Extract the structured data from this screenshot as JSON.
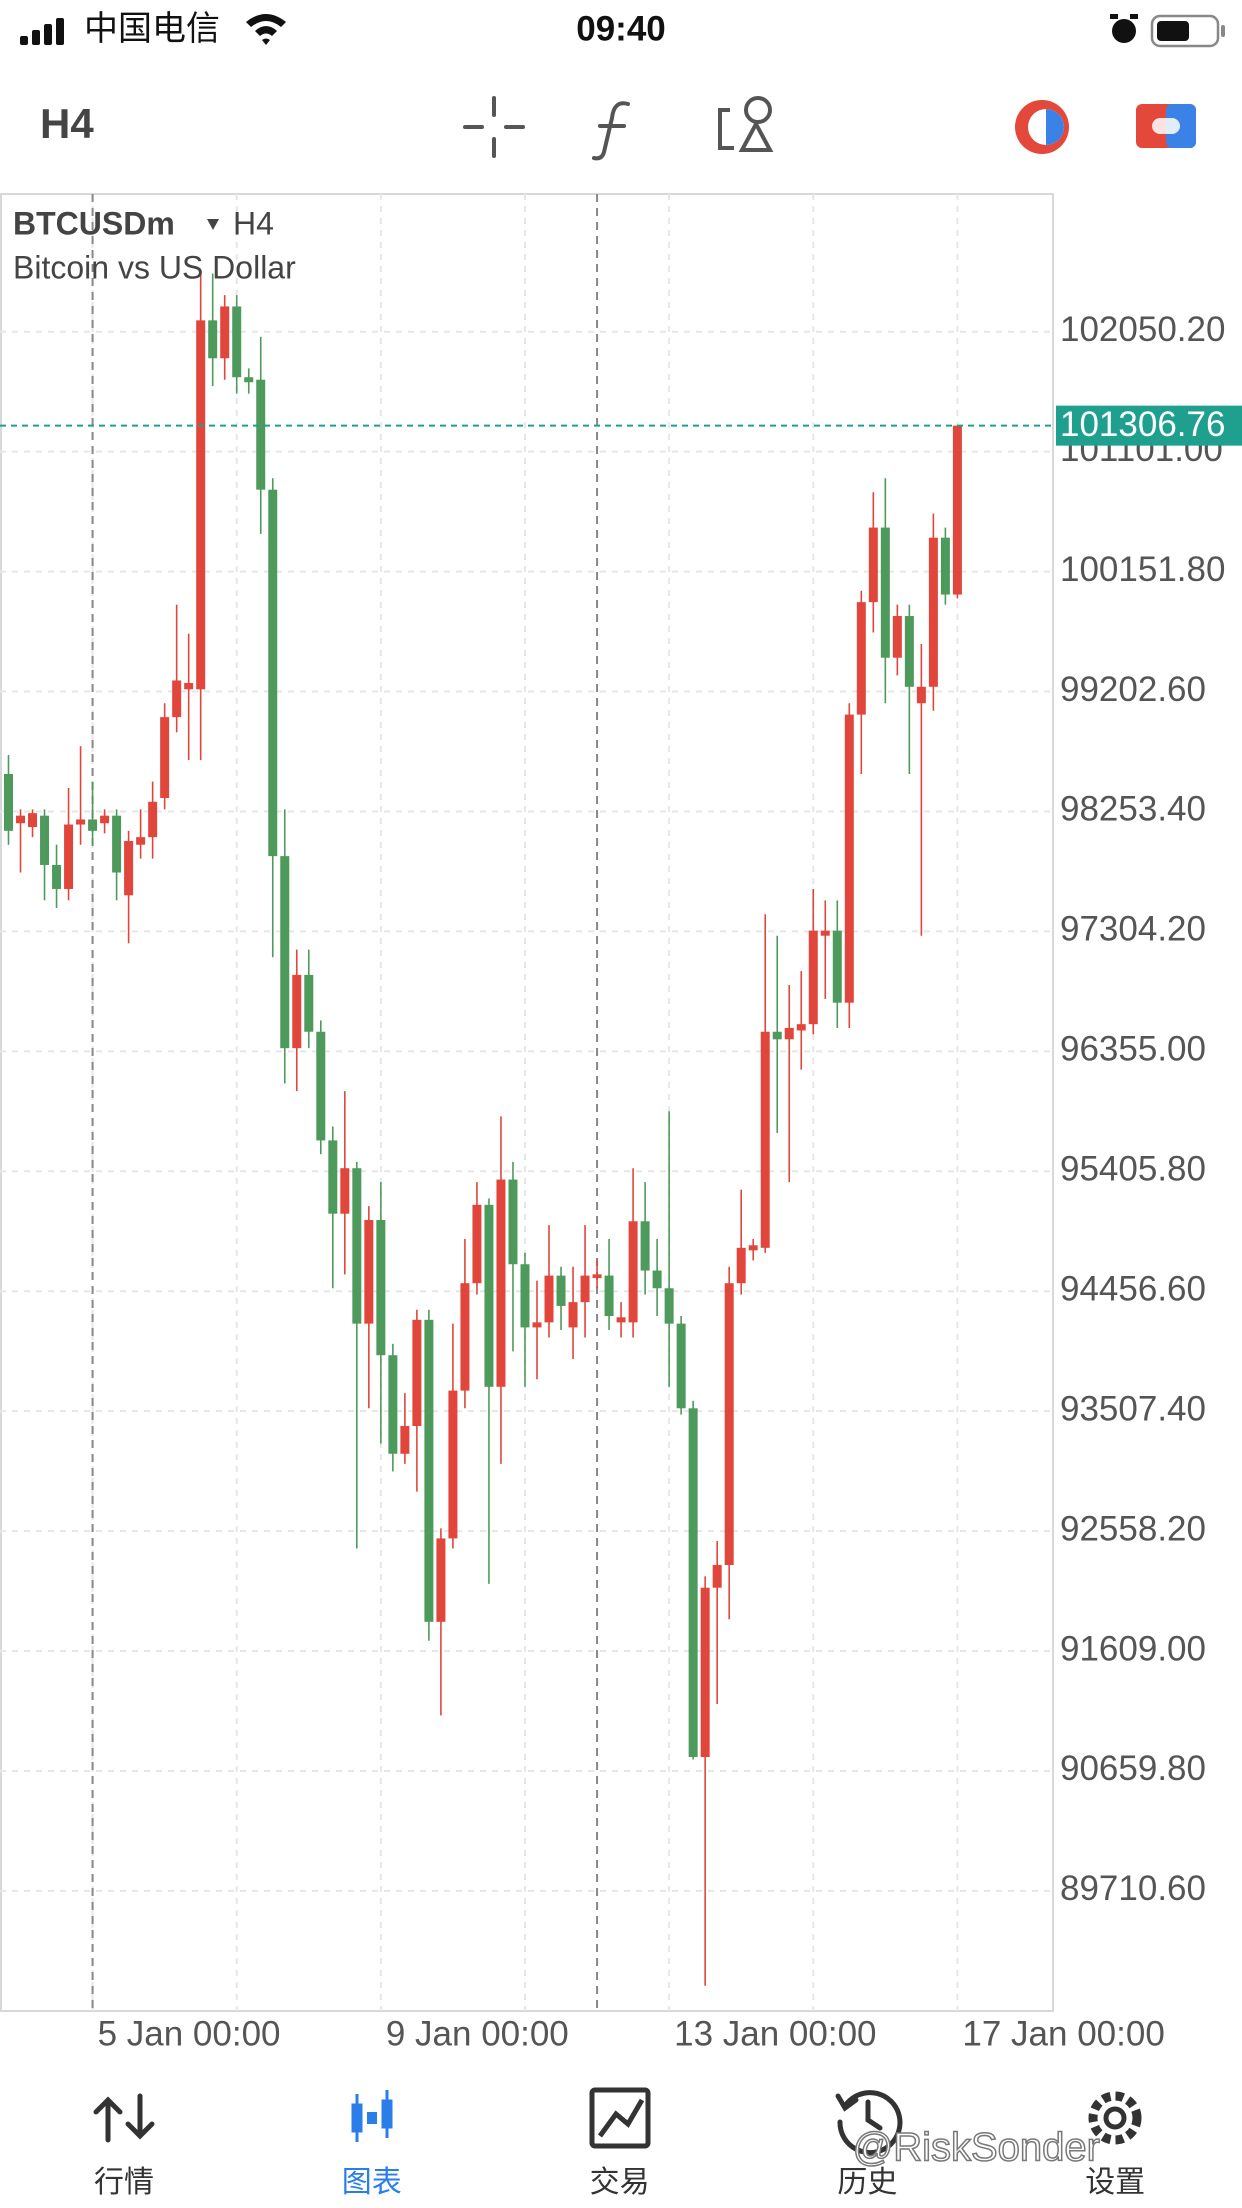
{
  "status_bar": {
    "carrier": "中国电信",
    "time": "09:40"
  },
  "chart_data": {
    "type": "candlestick",
    "symbol": "BTCUSDm",
    "timeframe": "H4",
    "description": "Bitcoin vs US Dollar",
    "categories": [
      null,
      null,
      null,
      null,
      null,
      null,
      null,
      "5 Jan 00:00",
      null,
      null,
      null,
      null,
      null,
      null,
      null,
      null,
      null,
      null,
      null,
      null,
      null,
      null,
      null,
      null,
      null,
      null,
      null,
      null,
      null,
      null,
      null,
      "9 Jan 00:00",
      null,
      null,
      null,
      null,
      null,
      null,
      null,
      null,
      null,
      null,
      null,
      null,
      null,
      null,
      null,
      null,
      null,
      null,
      null,
      null,
      null,
      null,
      null,
      "13 Jan 00:00",
      null,
      null,
      null,
      null,
      null,
      null,
      null,
      null,
      null,
      null,
      null,
      null,
      null,
      null,
      null,
      null,
      null,
      null,
      null,
      null,
      null,
      null,
      null,
      "17 Jan 00:00"
    ],
    "open": [
      98550,
      98160,
      98130,
      98220,
      97830,
      97640,
      98150,
      98190,
      98160,
      98220,
      97590,
      97990,
      98050,
      98360,
      99000,
      99220,
      99220,
      102140,
      101840,
      102250,
      101690,
      101670,
      100800,
      97900,
      96380,
      96960,
      96510,
      95650,
      95070,
      95430,
      94200,
      95020,
      93950,
      93170,
      93390,
      94230,
      91840,
      92500,
      93670,
      94520,
      95140,
      93700,
      95340,
      94670,
      94170,
      94210,
      94580,
      94170,
      94370,
      94560,
      94580,
      94210,
      94210,
      95010,
      94620,
      94480,
      94200,
      93530,
      90770,
      92110,
      92290,
      94520,
      94780,
      94800,
      96510,
      96450,
      96520,
      96570,
      97270,
      97310,
      96740,
      99020,
      99910,
      100500,
      99470,
      99800,
      99110,
      99240,
      100420,
      99970
    ],
    "high": [
      98700,
      98270,
      98270,
      98270,
      97990,
      98440,
      98770,
      98490,
      98270,
      98270,
      98100,
      98270,
      98490,
      99110,
      99890,
      99660,
      102510,
      102510,
      102340,
      102340,
      101760,
      102010,
      100890,
      98270,
      97160,
      97160,
      96600,
      95760,
      96040,
      95480,
      95130,
      95320,
      94040,
      93650,
      94310,
      94310,
      92580,
      94200,
      94870,
      95320,
      95190,
      95840,
      95480,
      94760,
      94540,
      94980,
      94650,
      94650,
      94980,
      94700,
      94870,
      94370,
      95430,
      95320,
      94870,
      95880,
      94260,
      93590,
      92200,
      92480,
      94650,
      95260,
      94870,
      97440,
      97270,
      96880,
      96990,
      97640,
      97550,
      97550,
      99110,
      100000,
      100780,
      100890,
      99890,
      99890,
      99580,
      100610,
      100500,
      101306.76
    ],
    "low": [
      97990,
      97770,
      98050,
      97550,
      97490,
      97550,
      97990,
      97990,
      98080,
      97550,
      97210,
      97880,
      97880,
      98270,
      98880,
      98660,
      98660,
      101620,
      101670,
      101560,
      101560,
      100450,
      97100,
      96100,
      96040,
      96380,
      95540,
      94480,
      94590,
      92420,
      93530,
      93250,
      93030,
      93090,
      92870,
      91690,
      91100,
      92420,
      93530,
      94430,
      92140,
      93090,
      93980,
      93700,
      93760,
      94090,
      94150,
      93920,
      94090,
      94480,
      94150,
      94090,
      94090,
      94430,
      94260,
      93700,
      93480,
      90750,
      88960,
      91190,
      91860,
      94430,
      94700,
      94760,
      95710,
      95320,
      96210,
      96490,
      96770,
      96540,
      96540,
      98550,
      99670,
      99110,
      99330,
      98550,
      97270,
      99050,
      99890,
      99940
    ],
    "close": [
      98100,
      98220,
      98240,
      97830,
      97640,
      98150,
      98190,
      98100,
      98220,
      97770,
      98020,
      98050,
      98330,
      99000,
      99290,
      99270,
      102140,
      101840,
      102250,
      101690,
      101650,
      100800,
      97900,
      96380,
      96960,
      96510,
      95650,
      95070,
      95430,
      94200,
      95020,
      93950,
      93170,
      93390,
      94230,
      91840,
      92500,
      93670,
      94520,
      95140,
      93700,
      95340,
      94670,
      94170,
      94210,
      94580,
      94340,
      94370,
      94580,
      94590,
      94260,
      94250,
      95010,
      94620,
      94480,
      94200,
      93530,
      90770,
      92110,
      92290,
      94520,
      94800,
      94820,
      96510,
      96450,
      96540,
      96570,
      97310,
      97310,
      96740,
      99020,
      99910,
      100500,
      99470,
      99800,
      99240,
      99240,
      100420,
      99970,
      101306.76
    ],
    "up_color": "#e0463b",
    "down_color": "#4e9a5c",
    "price_line_color": "#1fa08f",
    "ylim": [
      88760,
      103140
    ],
    "yticks": [
      {
        "value": 102050.2,
        "label": "102050.20"
      },
      {
        "value": 101101,
        "label": "101101.00"
      },
      {
        "value": 100151.8,
        "label": "100151.80"
      },
      {
        "value": 99202.6,
        "label": "99202.60"
      },
      {
        "value": 98253.4,
        "label": "98253.40"
      },
      {
        "value": 97304.2,
        "label": "97304.20"
      },
      {
        "value": 96355,
        "label": "96355.00"
      },
      {
        "value": 95405.8,
        "label": "95405.80"
      },
      {
        "value": 94456.6,
        "label": "94456.60"
      },
      {
        "value": 93507.4,
        "label": "93507.40"
      },
      {
        "value": 92558.2,
        "label": "92558.20"
      },
      {
        "value": 91609,
        "label": "91609.00"
      },
      {
        "value": 90659.8,
        "label": "90659.80"
      },
      {
        "value": 89710.6,
        "label": "89710.60"
      }
    ],
    "grid": true
  },
  "nav": {
    "tabs": [
      "行情",
      "图表",
      "交易",
      "历史",
      "设置"
    ],
    "active": 1,
    "active_color": "#2b7de9",
    "color": "#333333"
  },
  "watermark": "@RiskSonder"
}
